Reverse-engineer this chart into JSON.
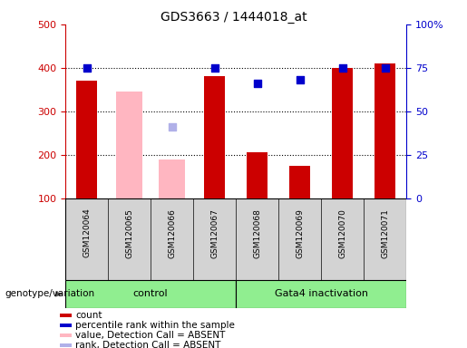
{
  "title": "GDS3663 / 1444018_at",
  "samples": [
    "GSM120064",
    "GSM120065",
    "GSM120066",
    "GSM120067",
    "GSM120068",
    "GSM120069",
    "GSM120070",
    "GSM120071"
  ],
  "count_values": [
    370,
    null,
    null,
    380,
    205,
    175,
    400,
    410
  ],
  "percentile_values": [
    75,
    null,
    null,
    75,
    66,
    68,
    75,
    75
  ],
  "absent_value_values": [
    null,
    345,
    190,
    null,
    null,
    null,
    null,
    null
  ],
  "absent_rank_values": [
    null,
    null,
    265,
    null,
    null,
    null,
    null,
    null
  ],
  "ylim_left": [
    100,
    500
  ],
  "ylim_right": [
    0,
    100
  ],
  "count_color": "#cc0000",
  "percentile_color": "#0000cc",
  "absent_value_color": "#ffb6c1",
  "absent_rank_color": "#b0b0e8",
  "bar_width": 0.5,
  "absent_bar_width": 0.6,
  "genotype_label": "genotype/variation",
  "group_control_label": "control",
  "group_gata_label": "Gata4 inactivation",
  "group_color": "#90ee90",
  "legend_items": [
    {
      "label": "count",
      "color": "#cc0000"
    },
    {
      "label": "percentile rank within the sample",
      "color": "#0000cc"
    },
    {
      "label": "value, Detection Call = ABSENT",
      "color": "#ffb6c1"
    },
    {
      "label": "rank, Detection Call = ABSENT",
      "color": "#b0b0e8"
    }
  ],
  "title_fontsize": 10,
  "tick_fontsize": 8,
  "sample_fontsize": 6.5,
  "group_fontsize": 8,
  "legend_fontsize": 7.5,
  "genotype_fontsize": 7.5
}
